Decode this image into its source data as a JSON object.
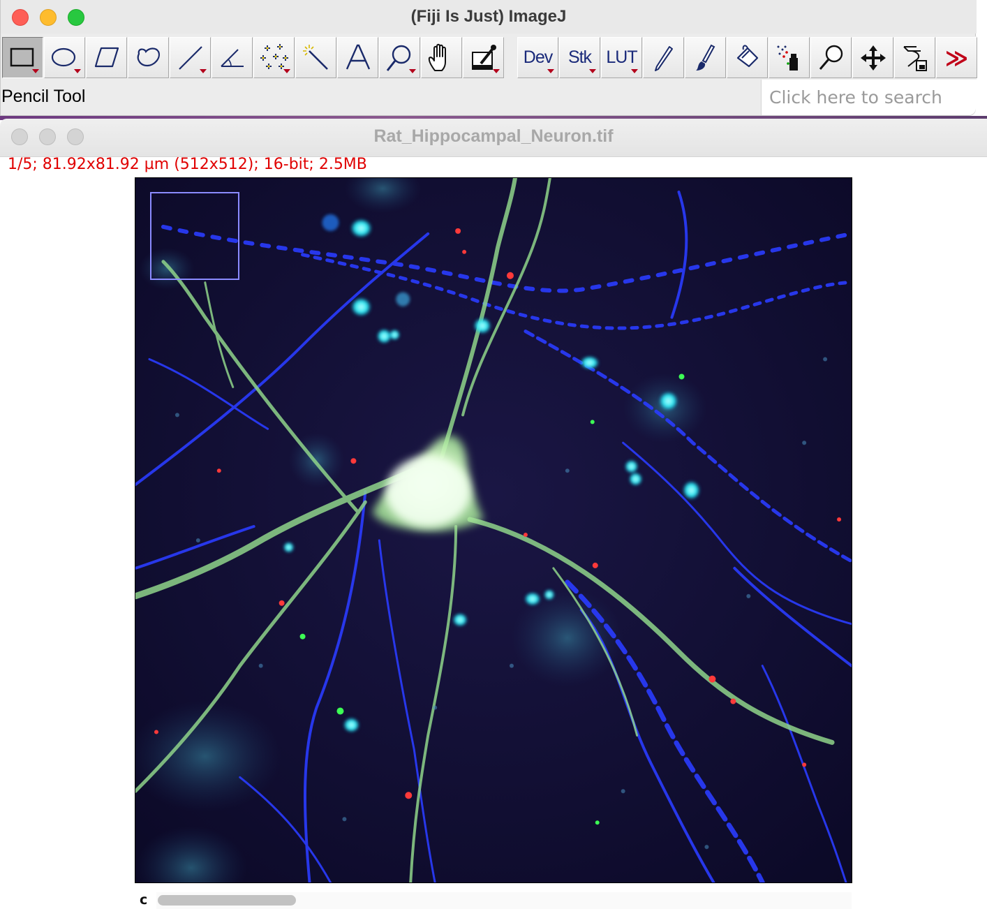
{
  "main_window": {
    "title": "(Fiji Is Just) ImageJ",
    "status": "Pencil Tool",
    "search_placeholder": "Click here to search",
    "tools": [
      {
        "name": "rectangle-tool",
        "icon": "rectangle-icon",
        "selected": true
      },
      {
        "name": "oval-tool",
        "icon": "oval-icon"
      },
      {
        "name": "polygon-tool",
        "icon": "polygon-icon"
      },
      {
        "name": "freehand-tool",
        "icon": "freehand-icon"
      },
      {
        "name": "line-tool",
        "icon": "line-icon"
      },
      {
        "name": "angle-tool",
        "icon": "angle-icon"
      },
      {
        "name": "point-tool",
        "icon": "multipoint-icon"
      },
      {
        "name": "wand-tool",
        "icon": "wand-icon"
      },
      {
        "name": "text-tool",
        "icon": "text-icon",
        "label": "A"
      },
      {
        "name": "magnifier-tool",
        "icon": "magnifier-icon"
      },
      {
        "name": "hand-tool",
        "icon": "hand-icon"
      },
      {
        "name": "color-picker-tool",
        "icon": "eyedropper-icon"
      },
      {
        "name": "dev-menu",
        "label": "Dev"
      },
      {
        "name": "stack-menu",
        "label": "Stk"
      },
      {
        "name": "lut-menu",
        "label": "LUT"
      },
      {
        "name": "pencil-tool",
        "icon": "pencil-icon"
      },
      {
        "name": "brush-tool",
        "icon": "brush-icon"
      },
      {
        "name": "flood-fill-tool",
        "icon": "paint-bucket-icon"
      },
      {
        "name": "spray-tool",
        "icon": "spray-icon"
      },
      {
        "name": "loupe-tool",
        "icon": "loupe-icon"
      },
      {
        "name": "move-tool",
        "icon": "move-arrows-icon"
      },
      {
        "name": "script-tool",
        "icon": "script-icon"
      },
      {
        "name": "more-tools",
        "icon": "double-chevron-icon",
        "label": "≫"
      }
    ]
  },
  "image_window": {
    "title": "Rat_Hippocampal_Neuron.tif",
    "info": "1/5; 81.92x81.92 µm (512x512); 16-bit; 2.5MB",
    "channel_label": "c",
    "channel_slider_fraction": 0.2
  },
  "colors": {
    "info_text": "#e00000",
    "background_dark": "#100b2e",
    "neuron": "#d8ffcc",
    "dendrite_blue": "#2a3cff",
    "nucleus_cyan": "#22e5f0",
    "puncta_red": "#ff3a3a"
  }
}
